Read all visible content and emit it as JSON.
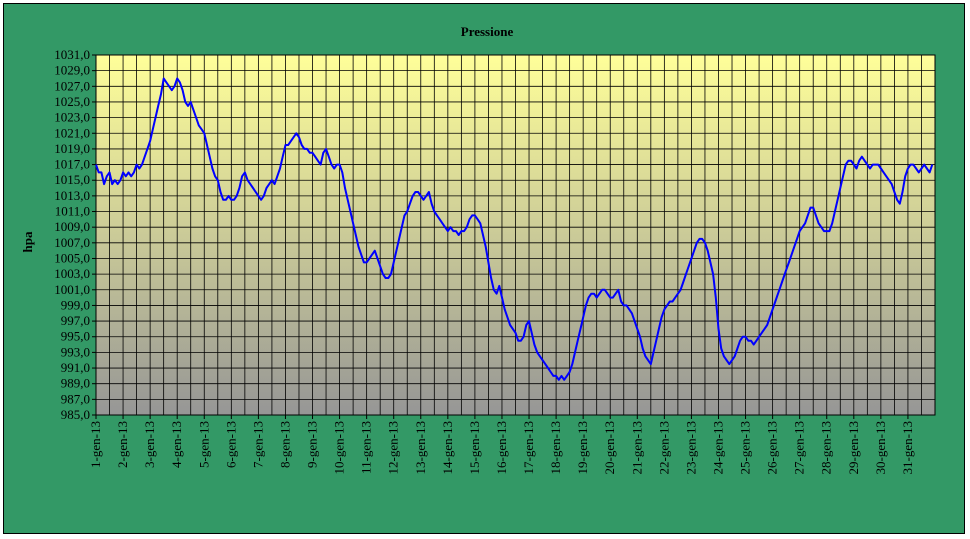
{
  "chart_data": {
    "type": "line",
    "title": "Pressione",
    "xlabel": "",
    "ylabel": "hpa",
    "ylim": [
      985,
      1031
    ],
    "y_tick_step": 2,
    "y_tick_labels": [
      "985,0",
      "987,0",
      "989,0",
      "991,0",
      "993,0",
      "995,0",
      "997,0",
      "999,0",
      "1001,0",
      "1003,0",
      "1005,0",
      "1007,0",
      "1009,0",
      "1011,0",
      "1013,0",
      "1015,0",
      "1017,0",
      "1019,0",
      "1021,0",
      "1023,0",
      "1025,0",
      "1027,0",
      "1029,0",
      "1031,0"
    ],
    "x_ticks": [
      "1-gen-13",
      "2-gen-13",
      "3-gen-13",
      "4-gen-13",
      "5-gen-13",
      "6-gen-13",
      "7-gen-13",
      "8-gen-13",
      "9-gen-13",
      "10-gen-13",
      "11-gen-13",
      "12-gen-13",
      "13-gen-13",
      "14-gen-13",
      "15-gen-13",
      "16-gen-13",
      "17-gen-13",
      "18-gen-13",
      "19-gen-13",
      "20-gen-13",
      "21-gen-13",
      "22-gen-13",
      "23-gen-13",
      "24-gen-13",
      "25-gen-13",
      "26-gen-13",
      "27-gen-13",
      "28-gen-13",
      "29-gen-13",
      "30-gen-13",
      "31-gen-13"
    ],
    "grid": true,
    "legend": "none",
    "colors": {
      "frame_bg": "#339966",
      "plot_bg_top": "#ffff99",
      "plot_bg_bottom": "#969696",
      "line": "#0000ff",
      "grid": "#000000"
    },
    "series": [
      {
        "x": [
          1.0,
          1.1,
          1.2,
          1.3,
          1.4,
          1.5,
          1.6,
          1.7,
          1.8,
          1.9,
          2.0,
          2.1,
          2.2,
          2.3,
          2.4,
          2.5,
          2.6,
          2.7,
          2.8,
          2.9,
          3.0,
          3.1,
          3.2,
          3.3,
          3.4,
          3.5,
          3.6,
          3.7,
          3.8,
          3.9,
          4.0,
          4.1,
          4.2,
          4.3,
          4.4,
          4.5,
          4.6,
          4.7,
          4.8,
          4.9,
          5.0,
          5.1,
          5.2,
          5.3,
          5.4,
          5.5,
          5.6,
          5.7,
          5.8,
          5.9,
          6.0,
          6.1,
          6.2,
          6.3,
          6.4,
          6.5,
          6.6,
          6.7,
          6.8,
          6.9,
          7.0,
          7.1,
          7.2,
          7.3,
          7.4,
          7.5,
          7.6,
          7.7,
          7.8,
          7.9,
          8.0,
          8.1,
          8.2,
          8.3,
          8.4,
          8.5,
          8.6,
          8.7,
          8.8,
          8.9,
          9.0,
          9.1,
          9.2,
          9.3,
          9.4,
          9.5,
          9.6,
          9.7,
          9.8,
          9.9,
          10.0,
          10.1,
          10.2,
          10.3,
          10.4,
          10.5,
          10.6,
          10.7,
          10.8,
          10.9,
          11.0,
          11.1,
          11.2,
          11.3,
          11.4,
          11.5,
          11.6,
          11.7,
          11.8,
          11.9,
          12.0,
          12.1,
          12.2,
          12.3,
          12.4,
          12.5,
          12.6,
          12.7,
          12.8,
          12.9,
          13.0,
          13.1,
          13.2,
          13.3,
          13.4,
          13.5,
          13.6,
          13.7,
          13.8,
          13.9,
          14.0,
          14.1,
          14.2,
          14.3,
          14.4,
          14.5,
          14.6,
          14.7,
          14.8,
          14.9,
          15.0,
          15.1,
          15.2,
          15.3,
          15.4,
          15.5,
          15.6,
          15.7,
          15.8,
          15.9,
          16.0,
          16.1,
          16.2,
          16.3,
          16.4,
          16.5,
          16.6,
          16.7,
          16.8,
          16.9,
          17.0,
          17.1,
          17.2,
          17.3,
          17.4,
          17.5,
          17.6,
          17.7,
          17.8,
          17.9,
          18.0,
          18.1,
          18.2,
          18.3,
          18.4,
          18.5,
          18.6,
          18.7,
          18.8,
          18.9,
          19.0,
          19.1,
          19.2,
          19.3,
          19.4,
          19.5,
          19.6,
          19.7,
          19.8,
          19.9,
          20.0,
          20.1,
          20.2,
          20.3,
          20.4,
          20.5,
          20.6,
          20.7,
          20.8,
          20.9,
          21.0,
          21.1,
          21.2,
          21.3,
          21.4,
          21.5,
          21.6,
          21.7,
          21.8,
          21.9,
          22.0,
          22.1,
          22.2,
          22.3,
          22.4,
          22.5,
          22.6,
          22.7,
          22.8,
          22.9,
          23.0,
          23.1,
          23.2,
          23.3,
          23.4,
          23.5,
          23.6,
          23.7,
          23.8,
          23.9,
          24.0,
          24.1,
          24.2,
          24.3,
          24.4,
          24.5,
          24.6,
          24.7,
          24.8,
          24.9,
          25.0,
          25.1,
          25.2,
          25.3,
          25.4,
          25.5,
          25.6,
          25.7,
          25.8,
          25.9,
          26.0,
          26.1,
          26.2,
          26.3,
          26.4,
          26.5,
          26.6,
          26.7,
          26.8,
          26.9,
          27.0,
          27.1,
          27.2,
          27.3,
          27.4,
          27.5,
          27.6,
          27.7,
          27.8,
          27.9,
          28.0,
          28.1,
          28.2,
          28.3,
          28.4,
          28.5,
          28.6,
          28.7,
          28.8,
          28.9,
          29.0,
          29.1,
          29.2,
          29.3,
          29.4,
          29.5,
          29.6,
          29.7,
          29.8,
          29.9,
          30.0,
          30.1,
          30.2,
          30.3,
          30.4,
          30.5,
          30.6,
          30.7,
          30.8,
          30.9,
          31.0,
          31.1,
          31.2,
          31.3,
          31.4,
          31.5,
          31.6,
          31.7,
          31.8,
          31.9
        ],
        "y": [
          1017.0,
          1016.0,
          1016.0,
          1014.5,
          1015.5,
          1016.0,
          1014.5,
          1015.0,
          1014.5,
          1015.0,
          1016.0,
          1015.5,
          1016.0,
          1015.5,
          1016.0,
          1017.0,
          1016.5,
          1017.0,
          1018.0,
          1019.0,
          1020.0,
          1021.5,
          1023.0,
          1024.5,
          1026.0,
          1028.0,
          1027.5,
          1027.0,
          1026.5,
          1027.0,
          1028.0,
          1027.5,
          1026.5,
          1025.0,
          1024.5,
          1025.0,
          1024.0,
          1023.0,
          1022.0,
          1021.5,
          1021.0,
          1019.5,
          1018.0,
          1016.5,
          1015.5,
          1015.0,
          1013.5,
          1012.5,
          1012.5,
          1013.0,
          1012.5,
          1012.5,
          1013.0,
          1014.0,
          1015.5,
          1016.0,
          1015.0,
          1014.5,
          1014.0,
          1013.5,
          1013.0,
          1012.5,
          1013.0,
          1014.0,
          1014.5,
          1015.0,
          1014.5,
          1015.5,
          1016.5,
          1018.0,
          1019.5,
          1019.5,
          1020.0,
          1020.5,
          1021.0,
          1020.5,
          1019.5,
          1019.0,
          1019.0,
          1018.5,
          1018.5,
          1018.0,
          1017.5,
          1017.0,
          1018.5,
          1019.0,
          1018.0,
          1017.0,
          1016.5,
          1017.0,
          1017.0,
          1016.0,
          1014.0,
          1012.5,
          1011.0,
          1009.5,
          1008.0,
          1006.5,
          1005.5,
          1004.5,
          1004.5,
          1005.0,
          1005.5,
          1006.0,
          1005.0,
          1004.0,
          1003.0,
          1002.5,
          1002.5,
          1003.0,
          1004.5,
          1006.0,
          1007.5,
          1009.0,
          1010.5,
          1011.0,
          1012.0,
          1013.0,
          1013.5,
          1013.5,
          1013.0,
          1012.5,
          1013.0,
          1013.5,
          1012.0,
          1011.0,
          1010.5,
          1010.0,
          1009.5,
          1009.0,
          1008.5,
          1009.0,
          1008.5,
          1008.5,
          1008.0,
          1008.5,
          1008.5,
          1009.0,
          1010.0,
          1010.5,
          1010.5,
          1010.0,
          1009.5,
          1008.0,
          1006.5,
          1004.5,
          1002.5,
          1001.0,
          1000.5,
          1001.5,
          1000.0,
          998.5,
          997.5,
          996.5,
          996.0,
          995.5,
          994.5,
          994.5,
          995.0,
          996.5,
          997.0,
          995.5,
          994.0,
          993.0,
          992.5,
          992.0,
          991.5,
          991.0,
          990.5,
          990.0,
          990.0,
          989.5,
          990.0,
          989.5,
          990.0,
          990.5,
          991.5,
          993.0,
          994.5,
          996.0,
          997.5,
          999.0,
          1000.0,
          1000.5,
          1000.5,
          1000.0,
          1000.5,
          1001.0,
          1001.0,
          1000.5,
          1000.0,
          1000.0,
          1000.5,
          1001.0,
          999.5,
          999.0,
          999.0,
          998.5,
          998.0,
          997.0,
          996.0,
          995.0,
          993.5,
          992.5,
          992.0,
          991.5,
          993.0,
          994.5,
          996.0,
          997.5,
          998.5,
          999.0,
          999.5,
          999.5,
          1000.0,
          1000.5,
          1001.0,
          1002.0,
          1003.0,
          1004.0,
          1005.0,
          1006.0,
          1007.0,
          1007.5,
          1007.5,
          1007.0,
          1006.0,
          1004.5,
          1003.0,
          1000.0,
          996.0,
          993.5,
          992.5,
          992.0,
          991.5,
          992.0,
          992.5,
          993.5,
          994.5,
          995.0,
          995.0,
          994.5,
          994.5,
          994.0,
          994.5,
          995.0,
          995.5,
          996.0,
          996.5,
          997.5,
          998.5,
          999.5,
          1000.5,
          1001.5,
          1002.5,
          1003.5,
          1004.5,
          1005.5,
          1006.5,
          1007.5,
          1008.5,
          1009.0,
          1009.5,
          1010.5,
          1011.5,
          1011.5,
          1010.5,
          1009.5,
          1009.0,
          1008.5,
          1008.5,
          1008.5,
          1009.5,
          1011.0,
          1012.5,
          1014.0,
          1015.5,
          1017.0,
          1017.5,
          1017.5,
          1017.0,
          1016.5,
          1017.5,
          1018.0,
          1017.5,
          1017.0,
          1016.5,
          1017.0,
          1017.0,
          1017.0,
          1016.5,
          1016.0,
          1015.5,
          1015.0,
          1014.5,
          1013.5,
          1012.5,
          1012.0,
          1013.5,
          1015.5,
          1016.5,
          1017.0,
          1017.0,
          1016.5,
          1016.0,
          1016.5,
          1017.0,
          1016.5,
          1016.0,
          1017.0
        ]
      }
    ]
  }
}
